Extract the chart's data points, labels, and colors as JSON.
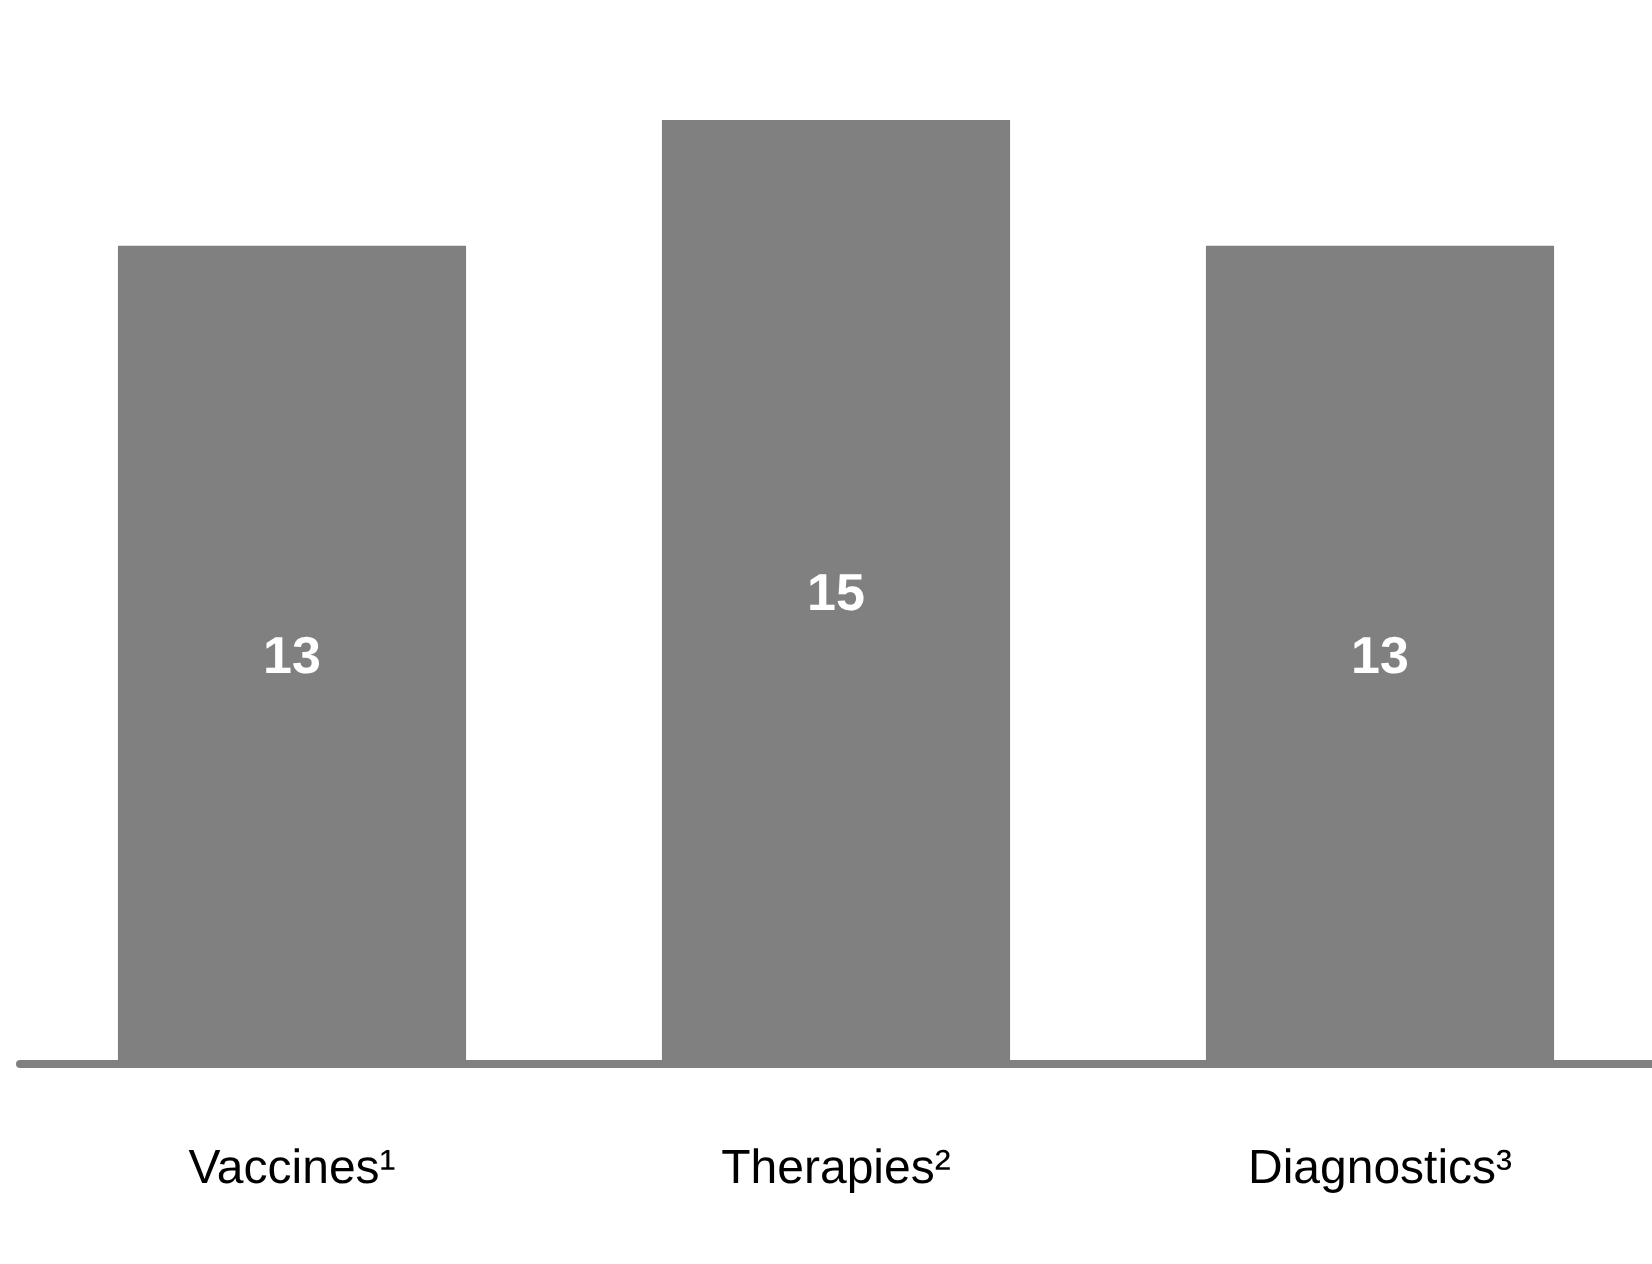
{
  "chart_data": {
    "type": "bar",
    "categories": [
      "Vaccines¹",
      "Therapies²",
      "Diagnostics³"
    ],
    "values": [
      13,
      15,
      13
    ],
    "color": "#808080",
    "data_labels": true
  }
}
